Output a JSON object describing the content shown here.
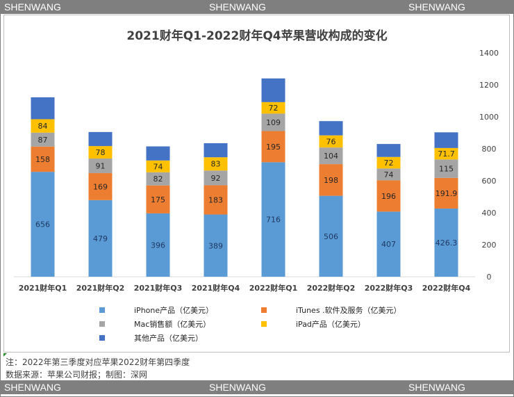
{
  "watermark": {
    "left": "SHENWANG",
    "center": "SHENWANG",
    "right": "SHENWANG"
  },
  "footer": {
    "note": "注：2022年第三季度对应苹果2022财年第四季度",
    "source": "数据来源：苹果公司财报；制图：深网"
  },
  "chart_data": {
    "type": "stacked-bar",
    "title": "2021财年Q1-2022财年Q4苹果营收构成的变化",
    "categories": [
      "2021财年Q1",
      "2021财年Q2",
      "2021财年Q3",
      "2021财年Q4",
      "2022财年Q1",
      "2022财年Q2",
      "2022财年Q3",
      "2022财年Q4"
    ],
    "series": [
      {
        "name": "iPhone产品（亿美元）",
        "color": "#5b9bd5",
        "values": [
          656,
          479,
          396,
          389,
          716,
          506,
          407,
          426.3
        ],
        "labels": [
          "656",
          "479",
          "396",
          "389",
          "716",
          "506",
          "407",
          "426.3"
        ]
      },
      {
        "name": "iTunes .软件及服务（亿美元）",
        "color": "#ed7d31",
        "values": [
          158,
          169,
          175,
          183,
          195,
          198,
          196,
          191.9
        ],
        "labels": [
          "158",
          "169",
          "175",
          "183",
          "195",
          "198",
          "196",
          "191.9"
        ]
      },
      {
        "name": "Mac销售额（亿美元）",
        "color": "#a5a5a5",
        "values": [
          87,
          91,
          82,
          92,
          109,
          104,
          74,
          115
        ],
        "labels": [
          "87",
          "91",
          "82",
          "92",
          "109",
          "104",
          "74",
          "115"
        ]
      },
      {
        "name": "iPad产品（亿美元）",
        "color": "#ffc000",
        "values": [
          84,
          78,
          74,
          83,
          72,
          76,
          72,
          71.7
        ],
        "labels": [
          "84",
          "78",
          "74",
          "83",
          "72",
          "76",
          "72",
          "71.7"
        ]
      },
      {
        "name": "其他产品（亿美元）",
        "color": "#4472c4",
        "values": [
          137,
          88,
          88,
          88,
          148,
          89,
          81,
          98
        ]
      }
    ],
    "y_axis": {
      "position": "right",
      "ylim": [
        0,
        1400
      ],
      "ticks": [
        "0",
        "200",
        "400",
        "600",
        "800",
        "1000",
        "1200",
        "1400"
      ]
    },
    "grid": false,
    "legend": "bottom"
  }
}
